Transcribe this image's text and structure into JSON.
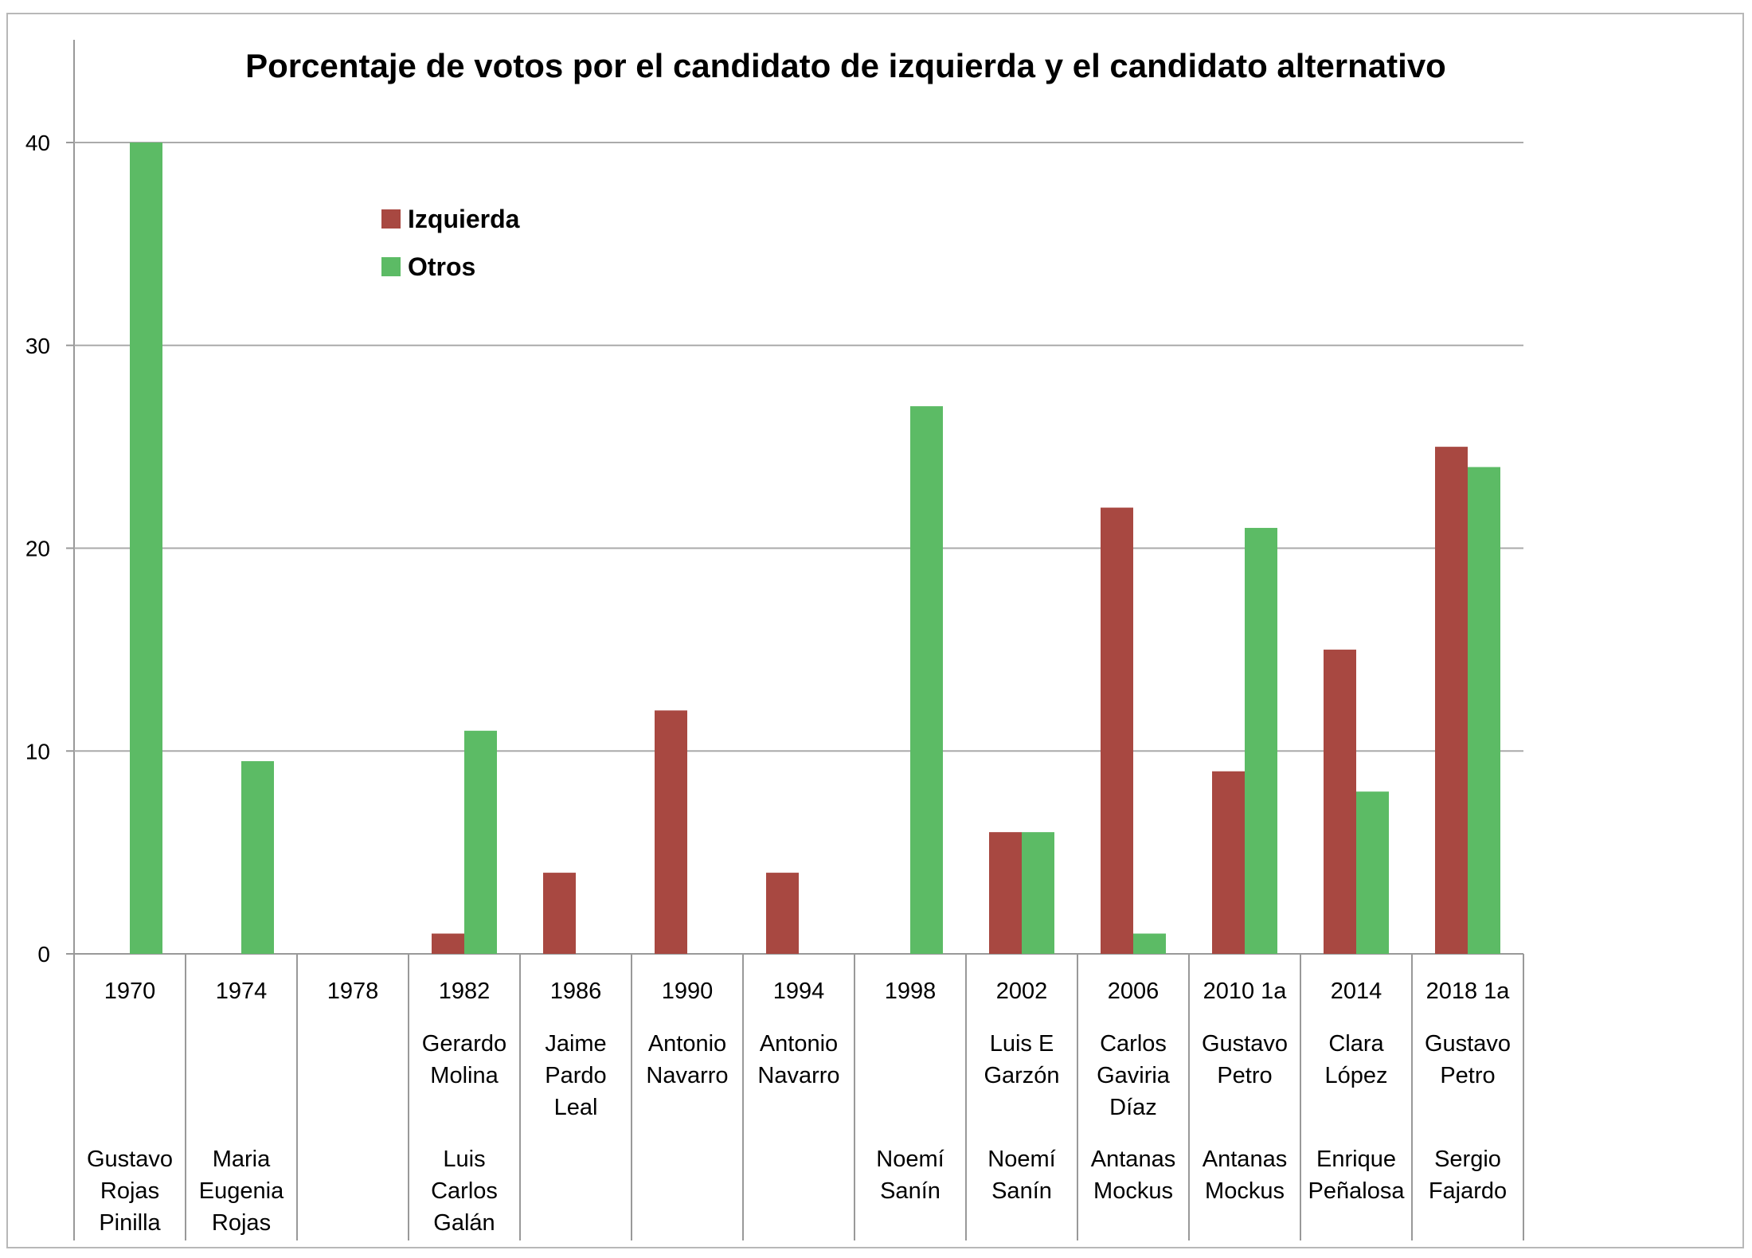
{
  "chart_data": {
    "type": "bar",
    "title": "Porcentaje de votos por el candidato de izquierda y el candidato alternativo",
    "xlabel": "",
    "ylabel": "",
    "ylim": [
      0,
      40
    ],
    "yticks": [
      "0",
      "10",
      "20",
      "30",
      "40"
    ],
    "grid": true,
    "legend_position": "top-left",
    "categories": [
      "1970",
      "1974",
      "1978",
      "1982",
      "1986",
      "1990",
      "1994",
      "1998",
      "2002",
      "2006",
      "2010 1a",
      "2014",
      "2018 1a"
    ],
    "left_candidates": [
      [],
      [],
      [],
      [
        "Gerardo",
        "Molina"
      ],
      [
        "Jaime",
        "Pardo",
        "Leal"
      ],
      [
        "Antonio",
        "Navarro"
      ],
      [
        "Antonio",
        "Navarro"
      ],
      [],
      [
        "Luis E",
        "Garzón"
      ],
      [
        "Carlos",
        "Gaviria",
        "Díaz"
      ],
      [
        "Gustavo",
        "Petro"
      ],
      [
        "Clara",
        "López"
      ],
      [
        "Gustavo",
        "Petro"
      ]
    ],
    "other_candidates": [
      [
        "Gustavo",
        "Rojas",
        "Pinilla"
      ],
      [
        "Maria",
        "Eugenia",
        "Rojas"
      ],
      [],
      [
        "Luis",
        "Carlos",
        "Galán"
      ],
      [],
      [],
      [],
      [
        "Noemí",
        "Sanín"
      ],
      [
        "Noemí",
        "Sanín"
      ],
      [
        "Antanas",
        "Mockus"
      ],
      [
        "Antanas",
        "Mockus"
      ],
      [
        "Enrique",
        "Peñalosa"
      ],
      [
        "Sergio",
        "Fajardo"
      ]
    ],
    "series": [
      {
        "name": "Izquierda",
        "color": "#a84841",
        "values": [
          0,
          0,
          0,
          1,
          4,
          12,
          4,
          0,
          6,
          22,
          9,
          15,
          25
        ]
      },
      {
        "name": "Otros",
        "color": "#5cbb65",
        "values": [
          40,
          9.5,
          0,
          11,
          0,
          0,
          0,
          27,
          6,
          1,
          21,
          8,
          24
        ]
      }
    ]
  }
}
